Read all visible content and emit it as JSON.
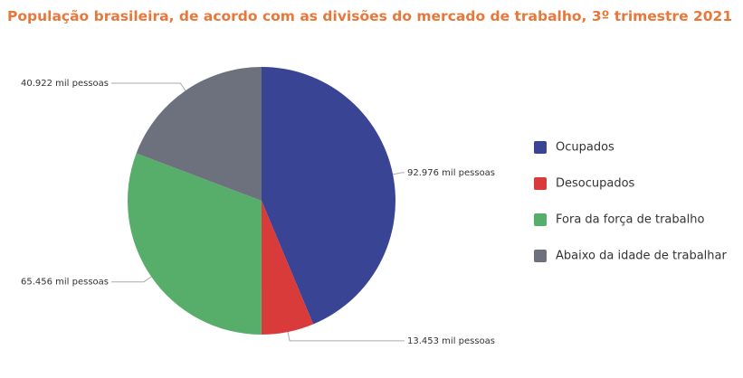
{
  "chart_data": {
    "type": "pie",
    "title": "População brasileira, de acordo com as divisões do mercado de trabalho, 3º trimestre 2021",
    "categories": [
      "Ocupados",
      "Desocupados",
      "Fora da força de trabalho",
      "Abaixo da idade de trabalhar"
    ],
    "values": [
      92976,
      13453,
      65456,
      40922
    ],
    "value_labels": [
      "92.976 mil pessoas",
      "13.453 mil pessoas",
      "65.456 mil pessoas",
      "40.922 mil pessoas"
    ],
    "colors": [
      "#3a4494",
      "#d93b3b",
      "#57ae6b",
      "#6c717d"
    ],
    "legend": "right"
  }
}
